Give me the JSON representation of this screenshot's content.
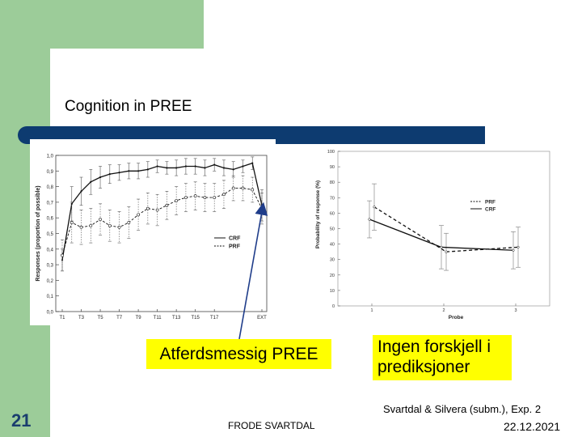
{
  "slide": {
    "title": "Cognition in PREE",
    "label_left": "Atferdsmessig PREE",
    "label_right": "Ingen forskjell i prediksjoner",
    "citation": "Svartdal & Silvera (subm.), Exp. 2",
    "page_number": "21",
    "author": "FRODE SVARTDAL",
    "date": "22.12.2021"
  },
  "colors": {
    "green": "#9ccc99",
    "title_bar": "#0d3b70",
    "label_highlight": "#ffff00",
    "arrow": "#1f3d8a"
  },
  "chart_data": [
    {
      "type": "line",
      "ylabel": "Responses (proportion of possible)",
      "ylim": [
        0,
        1.0
      ],
      "yticks": [
        "0,0",
        "0,1",
        "0,2",
        "0,3",
        "0,4",
        "0,5",
        "0,6",
        "0,7",
        "0,8",
        "0,9",
        "1,0"
      ],
      "xticks": [
        "T1",
        "T3",
        "T5",
        "T7",
        "T9",
        "T11",
        "T13",
        "T15",
        "T17",
        "EXT"
      ],
      "legend": [
        "CRF",
        "PRF"
      ],
      "legend_position": "right",
      "series": [
        {
          "name": "CRF",
          "style": "solid",
          "values": [
            0.33,
            0.69,
            0.77,
            0.83,
            0.86,
            0.88,
            0.89,
            0.9,
            0.9,
            0.91,
            0.93,
            0.92,
            0.92,
            0.93,
            0.93,
            0.92,
            0.94,
            0.92,
            0.91,
            0.93,
            0.95,
            0.68
          ],
          "errors": [
            0.07,
            0.11,
            0.09,
            0.08,
            0.07,
            0.06,
            0.05,
            0.05,
            0.05,
            0.05,
            0.04,
            0.04,
            0.05,
            0.05,
            0.05,
            0.05,
            0.04,
            0.05,
            0.05,
            0.04,
            0.04,
            0.1
          ]
        },
        {
          "name": "PRF",
          "style": "dashed",
          "values": [
            0.36,
            0.57,
            0.54,
            0.55,
            0.59,
            0.55,
            0.54,
            0.57,
            0.62,
            0.66,
            0.65,
            0.68,
            0.71,
            0.73,
            0.74,
            0.73,
            0.73,
            0.75,
            0.79,
            0.79,
            0.78,
            0.66
          ],
          "errors": [
            0.1,
            0.13,
            0.11,
            0.11,
            0.1,
            0.1,
            0.1,
            0.1,
            0.1,
            0.1,
            0.1,
            0.09,
            0.09,
            0.09,
            0.09,
            0.09,
            0.09,
            0.09,
            0.08,
            0.08,
            0.08,
            0.1
          ]
        }
      ]
    },
    {
      "type": "line",
      "xlabel": "Probe",
      "ylabel": "Probability of response (%)",
      "ylim": [
        0,
        100
      ],
      "yticks": [
        "0",
        "10",
        "20",
        "30",
        "40",
        "50",
        "60",
        "70",
        "80",
        "90",
        "100"
      ],
      "xticks": [
        "1",
        "2",
        "3"
      ],
      "legend": [
        "PRF",
        "CRF"
      ],
      "legend_position": "right",
      "series": [
        {
          "name": "PRF",
          "style": "dashed",
          "values": [
            64,
            35,
            38
          ],
          "errors": [
            15,
            12,
            13
          ]
        },
        {
          "name": "CRF",
          "style": "solid",
          "values": [
            56,
            38,
            36
          ],
          "errors": [
            12,
            14,
            12
          ]
        }
      ]
    }
  ]
}
